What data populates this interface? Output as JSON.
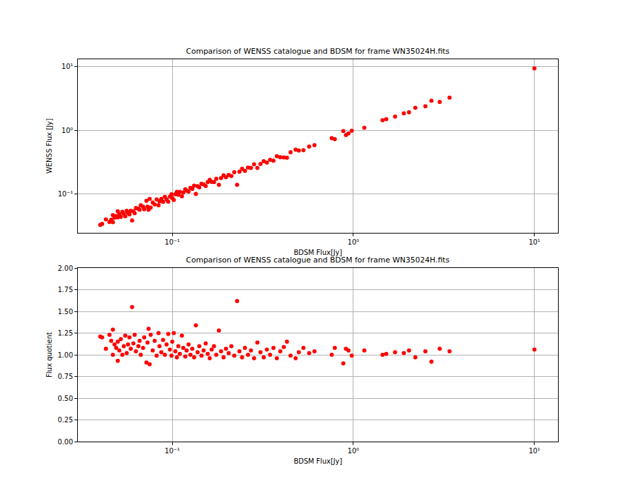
{
  "chart_data": [
    {
      "type": "scatter",
      "title": "Comparison of WENSS catalogue and BDSM for frame WN35024H.fits",
      "x_label": "BDSM Flux[Jy]",
      "y_label": "WENSS Flux [Jy]",
      "log": true,
      "grid": true,
      "color": "#ff0000",
      "marker": "circle",
      "xlim": [
        0.0301,
        13.5
      ],
      "ylim": [
        0.0248,
        13.1
      ],
      "xticks": [
        {
          "value": 0.1,
          "label": "10⁻¹"
        },
        {
          "value": 1,
          "label": "10⁰"
        },
        {
          "value": 10,
          "label": "10¹"
        }
      ],
      "yticks": [
        {
          "value": 0.1,
          "label": "10⁻¹"
        },
        {
          "value": 1,
          "label": "10⁰"
        },
        {
          "value": 10,
          "label": "10¹"
        }
      ],
      "x": [
        0.04,
        0.041,
        0.043,
        0.045,
        0.046,
        0.047,
        0.047,
        0.048,
        0.049,
        0.05,
        0.05,
        0.051,
        0.052,
        0.053,
        0.054,
        0.055,
        0.056,
        0.057,
        0.058,
        0.059,
        0.06,
        0.061,
        0.062,
        0.063,
        0.065,
        0.066,
        0.067,
        0.069,
        0.07,
        0.072,
        0.073,
        0.074,
        0.075,
        0.076,
        0.078,
        0.08,
        0.082,
        0.084,
        0.085,
        0.087,
        0.089,
        0.091,
        0.093,
        0.095,
        0.097,
        0.099,
        0.1,
        0.102,
        0.104,
        0.106,
        0.108,
        0.11,
        0.113,
        0.115,
        0.118,
        0.12,
        0.123,
        0.126,
        0.129,
        0.132,
        0.135,
        0.138,
        0.141,
        0.145,
        0.149,
        0.153,
        0.157,
        0.161,
        0.165,
        0.17,
        0.175,
        0.181,
        0.186,
        0.192,
        0.198,
        0.205,
        0.212,
        0.22,
        0.228,
        0.235,
        0.243,
        0.252,
        0.262,
        0.272,
        0.283,
        0.295,
        0.307,
        0.32,
        0.333,
        0.347,
        0.362,
        0.378,
        0.395,
        0.413,
        0.43,
        0.45,
        0.48,
        0.5,
        0.53,
        0.57,
        0.61,
        0.76,
        0.79,
        0.88,
        0.91,
        0.94,
        0.98,
        1.15,
        1.45,
        1.52,
        1.7,
        1.9,
        2.03,
        2.2,
        2.5,
        2.7,
        3.0,
        3.4,
        10.0
      ],
      "values": [
        0.0331,
        0.0342,
        0.0402,
        0.0366,
        0.0397,
        0.0364,
        0.047,
        0.0429,
        0.0454,
        0.0538,
        0.0435,
        0.0486,
        0.0441,
        0.053,
        0.0491,
        0.0451,
        0.0549,
        0.0509,
        0.0483,
        0.0551,
        0.0387,
        0.054,
        0.0504,
        0.0606,
        0.0591,
        0.0569,
        0.067,
        0.0639,
        0.0583,
        0.0791,
        0.064,
        0.0569,
        0.0843,
        0.0618,
        0.0743,
        0.069,
        0.0828,
        0.0672,
        0.0773,
        0.0845,
        0.0761,
        0.091,
        0.083,
        0.0766,
        0.0915,
        0.1,
        0.087,
        0.0816,
        0.1,
        0.109,
        0.0982,
        0.109,
        0.0926,
        0.106,
        0.12,
        0.114,
        0.11,
        0.126,
        0.121,
        0.136,
        0.101,
        0.134,
        0.128,
        0.146,
        0.142,
        0.135,
        0.155,
        0.168,
        0.156,
        0.155,
        0.175,
        0.141,
        0.179,
        0.198,
        0.185,
        0.201,
        0.193,
        0.222,
        0.141,
        0.226,
        0.251,
        0.233,
        0.262,
        0.259,
        0.295,
        0.259,
        0.298,
        0.33,
        0.314,
        0.347,
        0.335,
        0.394,
        0.38,
        0.379,
        0.374,
        0.455,
        0.5,
        0.485,
        0.491,
        0.559,
        0.587,
        0.76,
        0.731,
        0.978,
        0.85,
        0.895,
        0.99,
        1.1,
        1.45,
        1.5,
        1.65,
        1.86,
        1.93,
        2.27,
        2.4,
        2.93,
        2.8,
        3.27,
        9.43
      ]
    },
    {
      "type": "scatter",
      "title": "Comparison of WENSS catalogue and BDSM for frame WN35024H.fits",
      "x_label": "BDSM Flux[Jy]",
      "y_label": "Flux quotient",
      "log": "x",
      "grid": true,
      "color": "#ff0000",
      "marker": "circle",
      "xlim": [
        0.0301,
        13.5
      ],
      "ylim": [
        0,
        2
      ],
      "xticks": [
        {
          "value": 0.1,
          "label": "10⁻¹"
        },
        {
          "value": 1,
          "label": "10⁰"
        },
        {
          "value": 10,
          "label": "10¹"
        }
      ],
      "yticks": [
        {
          "value": 0,
          "label": "0.00"
        },
        {
          "value": 0.25,
          "label": "0.25"
        },
        {
          "value": 0.5,
          "label": "0.50"
        },
        {
          "value": 0.75,
          "label": "0.75"
        },
        {
          "value": 1,
          "label": "1.00"
        },
        {
          "value": 1.25,
          "label": "1.25"
        },
        {
          "value": 1.5,
          "label": "1.50"
        },
        {
          "value": 1.75,
          "label": "1.75"
        },
        {
          "value": 2,
          "label": "2.00"
        }
      ],
      "x": [
        0.04,
        0.041,
        0.043,
        0.045,
        0.046,
        0.047,
        0.047,
        0.048,
        0.049,
        0.05,
        0.05,
        0.051,
        0.052,
        0.053,
        0.054,
        0.055,
        0.056,
        0.057,
        0.058,
        0.059,
        0.06,
        0.061,
        0.062,
        0.063,
        0.065,
        0.066,
        0.067,
        0.069,
        0.07,
        0.072,
        0.073,
        0.074,
        0.075,
        0.076,
        0.078,
        0.08,
        0.082,
        0.084,
        0.085,
        0.087,
        0.089,
        0.091,
        0.093,
        0.095,
        0.097,
        0.099,
        0.1,
        0.102,
        0.104,
        0.106,
        0.108,
        0.11,
        0.113,
        0.115,
        0.118,
        0.12,
        0.123,
        0.126,
        0.129,
        0.132,
        0.135,
        0.138,
        0.141,
        0.145,
        0.149,
        0.153,
        0.157,
        0.161,
        0.165,
        0.17,
        0.175,
        0.181,
        0.186,
        0.192,
        0.198,
        0.205,
        0.212,
        0.22,
        0.228,
        0.235,
        0.243,
        0.252,
        0.262,
        0.272,
        0.283,
        0.295,
        0.307,
        0.32,
        0.333,
        0.347,
        0.362,
        0.378,
        0.395,
        0.413,
        0.43,
        0.45,
        0.48,
        0.5,
        0.53,
        0.57,
        0.61,
        0.76,
        0.79,
        0.88,
        0.91,
        0.94,
        0.98,
        1.15,
        1.45,
        1.52,
        1.7,
        1.9,
        2.03,
        2.2,
        2.5,
        2.7,
        3.0,
        3.4,
        10.0
      ],
      "values": [
        1.21,
        1.2,
        1.07,
        1.23,
        1.16,
        1.29,
        1.0,
        1.12,
        1.08,
        0.93,
        1.15,
        1.05,
        1.18,
        1.0,
        1.1,
        1.22,
        1.02,
        1.12,
        1.2,
        1.07,
        1.55,
        1.13,
        1.23,
        1.04,
        1.1,
        1.16,
        1.0,
        1.08,
        1.2,
        0.91,
        1.14,
        1.3,
        0.89,
        1.23,
        1.05,
        1.16,
        0.99,
        1.25,
        1.1,
        1.03,
        1.17,
        1.0,
        1.12,
        1.24,
        1.06,
        0.99,
        1.15,
        1.25,
        1.04,
        0.97,
        1.1,
        1.01,
        1.22,
        1.08,
        0.98,
        1.05,
        1.12,
        1.0,
        1.07,
        0.97,
        1.34,
        1.03,
        1.1,
        0.99,
        1.05,
        1.13,
        1.01,
        0.96,
        1.06,
        1.1,
        1.0,
        1.28,
        1.04,
        0.97,
        1.07,
        1.02,
        1.1,
        0.99,
        1.62,
        1.04,
        0.97,
        1.08,
        1.0,
        1.05,
        0.96,
        1.14,
        1.03,
        0.97,
        1.06,
        1.0,
        1.08,
        0.96,
        1.04,
        1.09,
        1.15,
        0.99,
        0.96,
        1.03,
        1.08,
        1.02,
        1.04,
        1.0,
        1.08,
        0.9,
        1.07,
        1.05,
        0.99,
        1.05,
        1.0,
        1.01,
        1.03,
        1.02,
        1.05,
        0.97,
        1.04,
        0.92,
        1.07,
        1.04,
        1.06
      ]
    }
  ]
}
